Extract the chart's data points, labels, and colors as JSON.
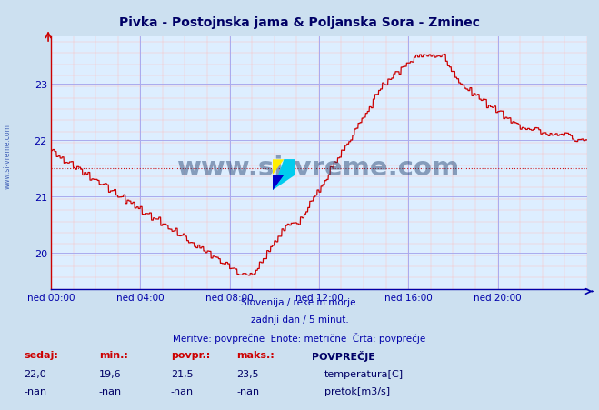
{
  "title": "Pivka - Postojnska jama & Poljanska Sora - Zminec",
  "bg_color": "#cce0f0",
  "plot_bg_color": "#ddeeff",
  "line_color": "#cc0000",
  "avg_value": 21.5,
  "ylim": [
    19.35,
    23.85
  ],
  "yticks": [
    20,
    21,
    22,
    23
  ],
  "title_color": "#000066",
  "subtitle1": "Slovenija / reke in morje.",
  "subtitle2": "zadnji dan / 5 minut.",
  "subtitle3": "Meritve: povprečne  Enote: metrične  Črta: povprečje",
  "footer_color": "#0000aa",
  "legend_title": "POVPREČJE",
  "legend_items": [
    {
      "label": "temperatura[C]",
      "color": "#cc0000"
    },
    {
      "label": "pretok[m3/s]",
      "color": "#00cc00"
    }
  ],
  "stats_headers": [
    "sedaj:",
    "min.:",
    "povpr.:",
    "maks.:"
  ],
  "stats_temp": [
    "22,0",
    "19,6",
    "21,5",
    "23,5"
  ],
  "stats_pretok": [
    "-nan",
    "-nan",
    "-nan",
    "-nan"
  ],
  "xtick_labels": [
    "ned 00:00",
    "ned 04:00",
    "ned 08:00",
    "ned 12:00",
    "ned 16:00",
    "ned 20:00"
  ],
  "xtick_positions": [
    0,
    288,
    576,
    864,
    1152,
    1440
  ],
  "total_points": 1728,
  "watermark": "www.si-vreme.com",
  "watermark_color": "#1a3a6a"
}
